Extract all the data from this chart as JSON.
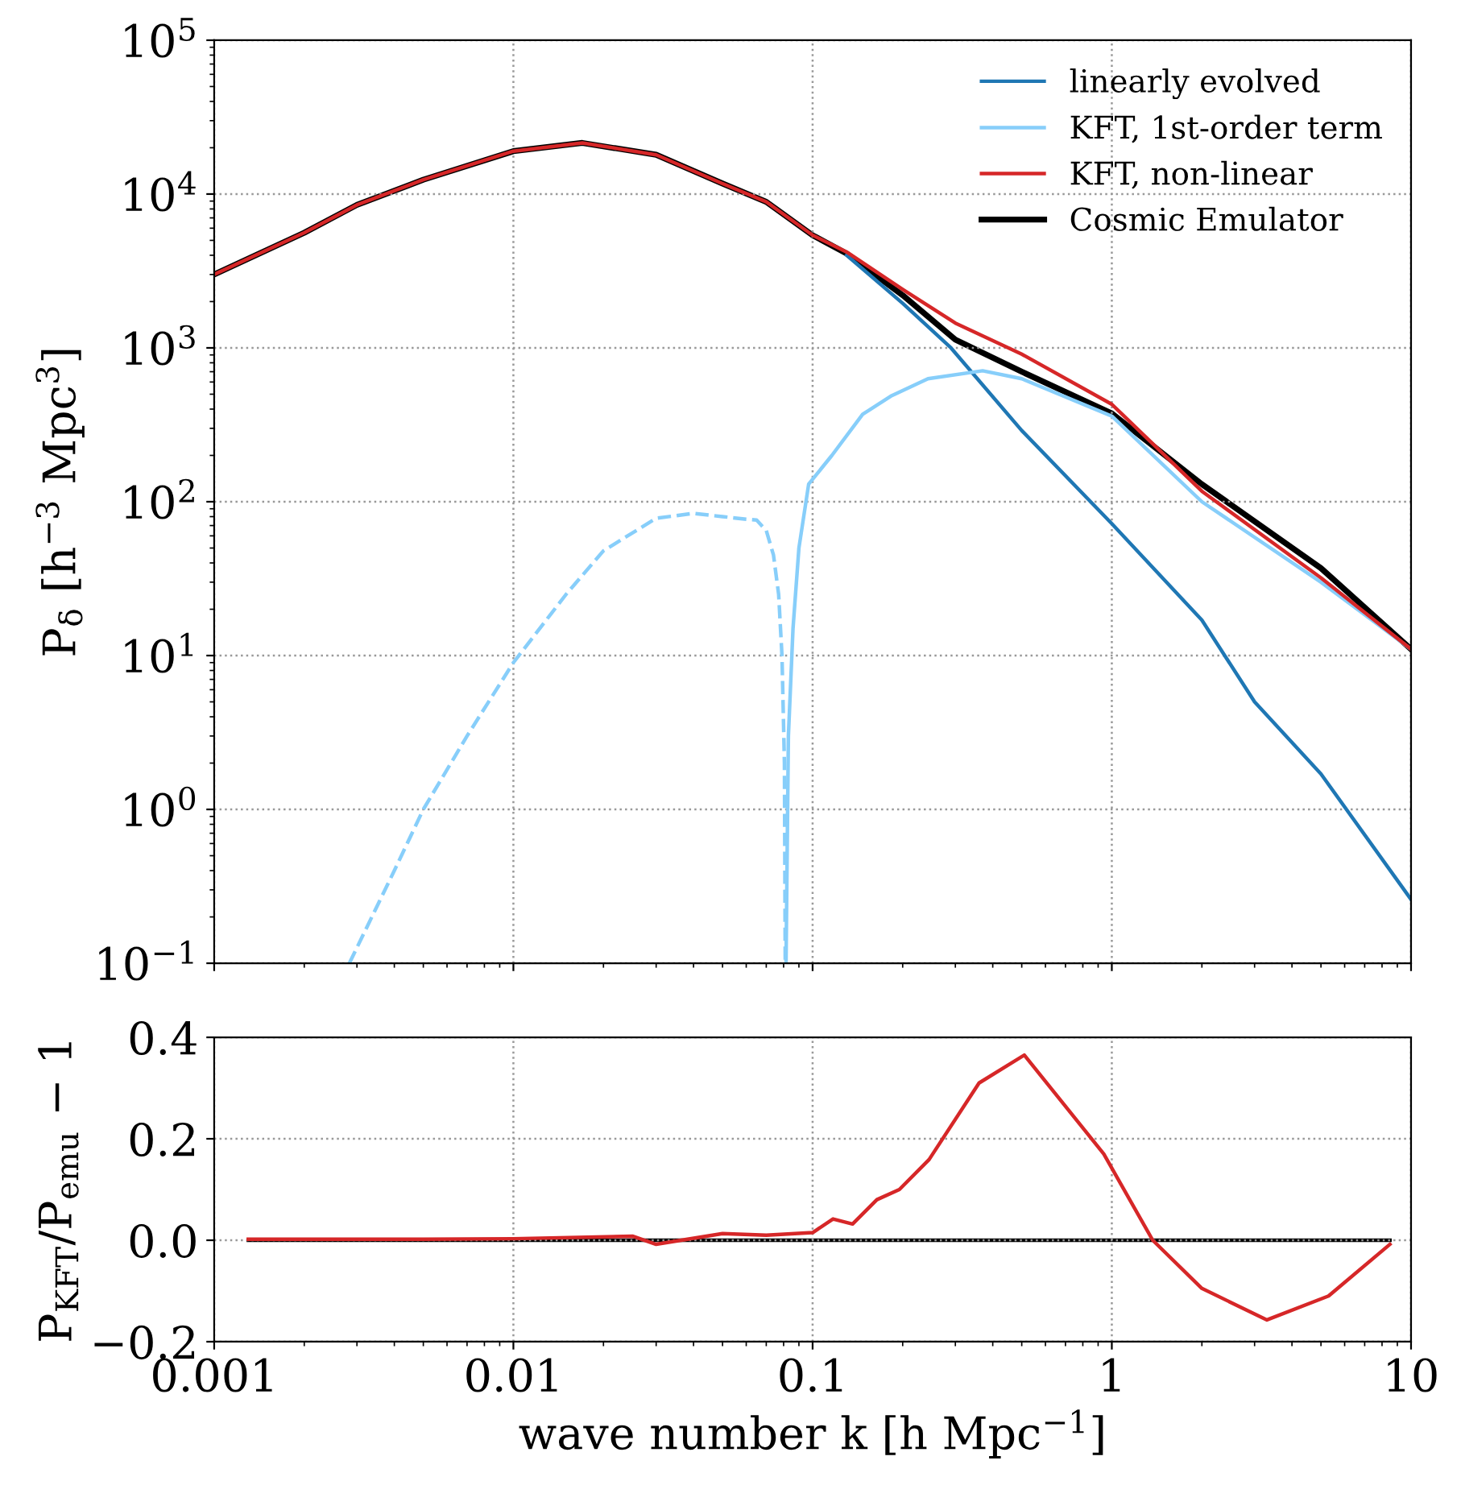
{
  "chart_data": [
    {
      "type": "line",
      "ylabel": "P$_{δ}$ [h$^{−3}$ Mpc$^{3}$]",
      "log": "xy",
      "grid": true,
      "legend": "top right",
      "tick_labels": "y",
      "line_style": "solid",
      "xlim": [
        0.001,
        10
      ],
      "xticks": [
        0.001,
        0.01,
        0.1,
        1,
        10
      ],
      "ylim": [
        0.1,
        100000
      ],
      "yticks": [
        {
          "value": 0.1,
          "label": "10$^{−1}$"
        },
        {
          "value": 1,
          "label": "10$^{0}$"
        },
        {
          "value": 10,
          "label": "10$^{1}$"
        },
        {
          "value": 100,
          "label": "10$^{2}$"
        },
        {
          "value": 1000,
          "label": "10$^{3}$"
        },
        {
          "value": 10000,
          "label": "10$^{4}$"
        },
        {
          "value": 100000,
          "label": "10$^{5}$"
        }
      ],
      "series": [
        {
          "name": "linearly evolved",
          "color": "#1f77b4",
          "x": [
            0.13,
            0.2,
            0.29,
            0.5,
            1,
            2,
            3,
            5,
            10
          ],
          "values": [
            4000,
            1950,
            1000,
            290,
            72,
            17,
            5,
            1.7,
            0.26
          ]
        },
        {
          "name": "KFT, 1st-order term",
          "color": "#87cefa",
          "x": [
            0.0815,
            0.083,
            0.086,
            0.09,
            0.097,
            0.116,
            0.147,
            0.184,
            0.243,
            0.37,
            0.5,
            1,
            2,
            5,
            10
          ],
          "values": [
            0.1,
            3,
            15,
            50,
            130,
            200,
            370,
            490,
            630,
            710,
            630,
            360,
            100,
            30,
            11
          ]
        },
        {
          "color": "#87cefa",
          "line_style": "dashed",
          "x": [
            0.00283,
            0.004,
            0.005,
            0.007,
            0.01,
            0.015,
            0.02,
            0.03,
            0.04,
            0.05,
            0.06,
            0.065,
            0.07,
            0.074,
            0.077,
            0.079,
            0.0805,
            0.081
          ],
          "values": [
            0.1,
            0.4,
            1.0,
            3,
            9,
            25,
            48,
            78,
            84,
            80,
            77,
            76,
            65,
            45,
            25,
            10,
            2,
            0.1
          ]
        },
        {
          "name": "KFT, non-linear",
          "color": "#d62728",
          "x": [
            0.001,
            0.002,
            0.003,
            0.005,
            0.01,
            0.017,
            0.03,
            0.05,
            0.07,
            0.1,
            0.13,
            0.2,
            0.3,
            0.5,
            1,
            2,
            5,
            10
          ],
          "values": [
            3000,
            5600,
            8500,
            12400,
            19000,
            21500,
            18000,
            11700,
            8900,
            5400,
            4200,
            2400,
            1450,
            910,
            430,
            117,
            32,
            11
          ]
        },
        {
          "name": "Cosmic Emulator",
          "color": "#000000",
          "x": [
            0.001,
            0.002,
            0.003,
            0.005,
            0.01,
            0.017,
            0.03,
            0.05,
            0.07,
            0.1,
            0.13,
            0.2,
            0.3,
            0.5,
            1,
            2,
            5,
            10
          ],
          "values": [
            3000,
            5600,
            8500,
            12400,
            19000,
            21500,
            18000,
            11700,
            8900,
            5400,
            4100,
            2200,
            1130,
            700,
            375,
            130,
            37,
            11
          ]
        }
      ]
    },
    {
      "type": "line",
      "xlabel": "wave number k [h Mpc$^{−1}$]",
      "ylabel": "P$_{KFT}$/P$_{emu}$ − 1",
      "log": "x",
      "grid": true,
      "line_style": "solid",
      "xlim": [
        0.001,
        10
      ],
      "xticks": [
        0.001,
        0.01,
        0.1,
        1,
        10
      ],
      "ylim": [
        -0.2,
        0.4
      ],
      "yticks": [
        {
          "value": -0.2,
          "label": "−0.2"
        },
        {
          "value": 0,
          "label": "0.0"
        },
        {
          "value": 0.2,
          "label": "0.2"
        },
        {
          "value": 0.4,
          "label": "0.4"
        }
      ],
      "series": [
        {
          "color": "#000000",
          "x": [
            0.0013,
            8.5
          ],
          "values": [
            0,
            0
          ]
        },
        {
          "color": "#d62728",
          "x": [
            0.0013,
            0.005,
            0.01,
            0.025,
            0.03,
            0.05,
            0.07,
            0.1,
            0.117,
            0.136,
            0.164,
            0.195,
            0.245,
            0.36,
            0.51,
            0.94,
            1.37,
            2.0,
            3.3,
            5.3,
            8.5
          ],
          "values": [
            0.002,
            0.002,
            0.003,
            0.008,
            -0.008,
            0.013,
            0.01,
            0.015,
            0.042,
            0.032,
            0.08,
            0.1,
            0.159,
            0.31,
            0.365,
            0.17,
            0,
            -0.095,
            -0.157,
            -0.11,
            -0.008
          ]
        }
      ]
    }
  ]
}
